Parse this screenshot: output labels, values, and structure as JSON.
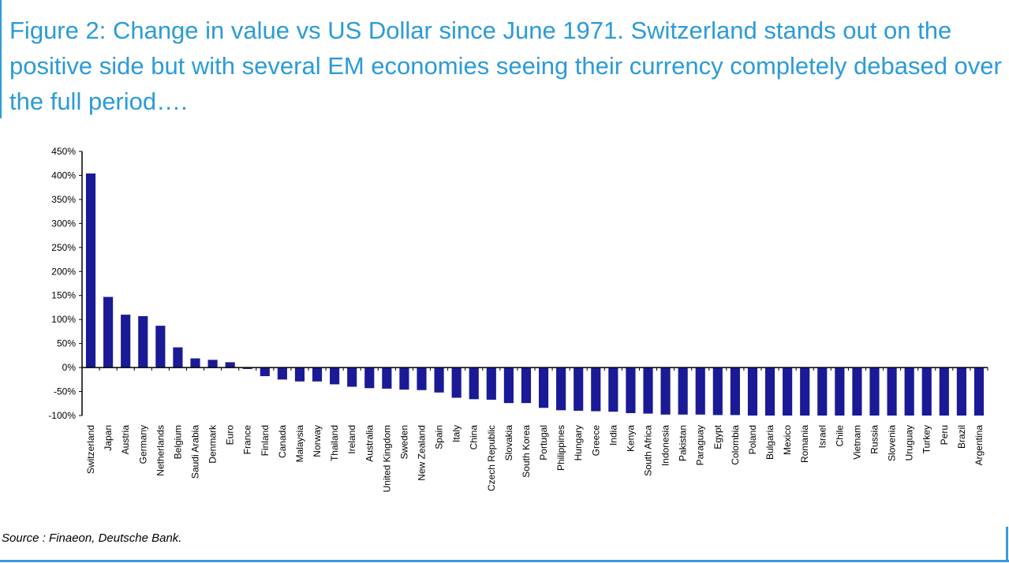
{
  "title": "Figure 2: Change in value vs US Dollar since June 1971. Switzerland stands out on the positive side but with several EM economies seeing their currency completely debased over the full period….",
  "source": "Source : Finaeon, Deutsche Bank.",
  "colors": {
    "title": "#2b9bd8",
    "bar": "#1a1a96",
    "frame": "#3a9ad8"
  },
  "chart_data": {
    "type": "bar",
    "title": "",
    "xlabel": "",
    "ylabel": "",
    "ylim": [
      -100,
      450
    ],
    "yticks": [
      -100,
      -50,
      0,
      50,
      100,
      150,
      200,
      250,
      300,
      350,
      400,
      450
    ],
    "ytick_format": "percent",
    "grid": false,
    "categories": [
      "Switzerland",
      "Japan",
      "Austria",
      "Germany",
      "Netherlands",
      "Belgium",
      "Saudi Arabia",
      "Denmark",
      "Euro",
      "France",
      "Finland",
      "Canada",
      "Malaysia",
      "Norway",
      "Thailand",
      "Ireland",
      "Australia",
      "United Kingdom",
      "Sweden",
      "New Zealand",
      "Spain",
      "Italy",
      "China",
      "Czech Republic",
      "Slovakia",
      "South Korea",
      "Portugal",
      "Philippines",
      "Hungary",
      "Greece",
      "India",
      "Kenya",
      "South Africa",
      "Indonesia",
      "Pakistan",
      "Paraguay",
      "Egypt",
      "Colombia",
      "Poland",
      "Bulgaria",
      "Mexico",
      "Romania",
      "Israel",
      "Chile",
      "Vietnam",
      "Russia",
      "Slovenia",
      "Uruguay",
      "Turkey",
      "Peru",
      "Brazil",
      "Argentina"
    ],
    "values": [
      404,
      147,
      110,
      107,
      87,
      42,
      19,
      16,
      11,
      -3,
      -18,
      -25,
      -29,
      -29,
      -35,
      -40,
      -43,
      -44,
      -46,
      -47,
      -52,
      -63,
      -66,
      -67,
      -74,
      -74,
      -84,
      -89,
      -90,
      -91,
      -92,
      -95,
      -96,
      -98,
      -98,
      -98,
      -99,
      -99,
      -100,
      -100,
      -100,
      -100,
      -100,
      -100,
      -100,
      -100,
      -100,
      -100,
      -100,
      -100,
      -100,
      -100
    ]
  }
}
